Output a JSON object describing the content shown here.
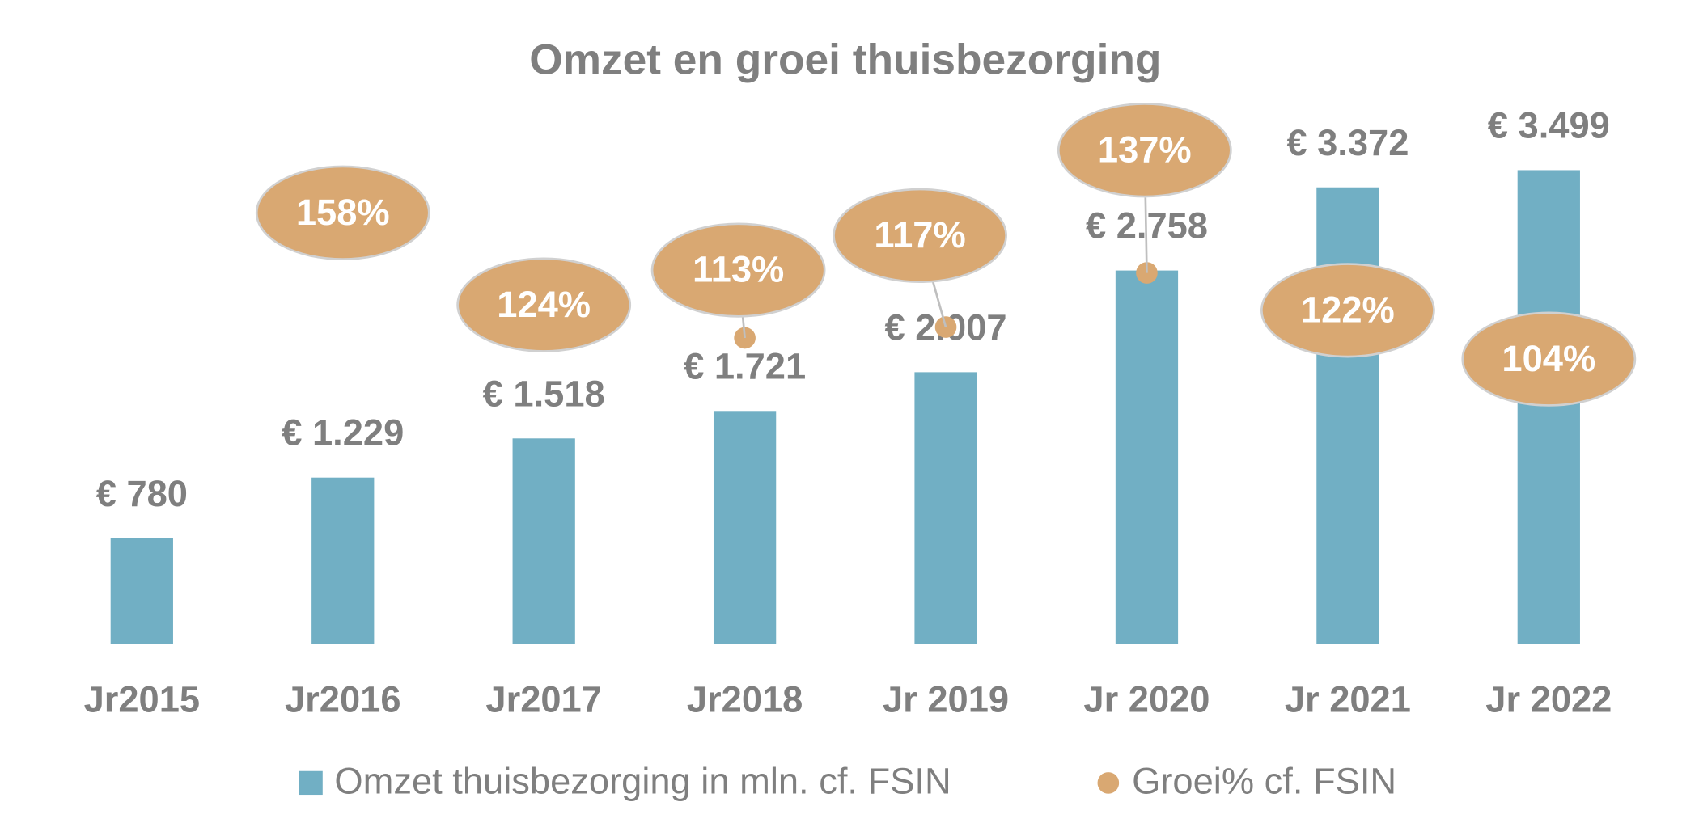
{
  "chart_data": {
    "type": "bar",
    "title": "Omzet en groei thuisbezorging",
    "categories": [
      "Jr2015",
      "Jr2016",
      "Jr2017",
      "Jr2018",
      "Jr 2019",
      "Jr 2020",
      "Jr 2021",
      "Jr 2022"
    ],
    "ylim": [
      0,
      4000
    ],
    "y2lim": [
      0,
      200
    ],
    "series": [
      {
        "name": "Omzet thuisbezorging in mln. cf. FSIN",
        "type": "bar",
        "color": "#71afc4",
        "values": [
          780,
          1229,
          1518,
          1721,
          2007,
          2758,
          3372,
          3499
        ],
        "value_labels": [
          "€ 780",
          "€ 1.229",
          "€ 1.518",
          "€ 1.721",
          "€ 2.007",
          "€ 2.758",
          "€ 3.372",
          "€ 3.499"
        ]
      },
      {
        "name": "Groei% cf. FSIN",
        "type": "scatter",
        "axis": "y2",
        "color": "#d9a872",
        "values": [
          null,
          158,
          124,
          113,
          117,
          137,
          122,
          104
        ],
        "value_labels": [
          null,
          "158%",
          "124%",
          "113%",
          "117%",
          "137%",
          "122%",
          "104%"
        ]
      }
    ]
  }
}
